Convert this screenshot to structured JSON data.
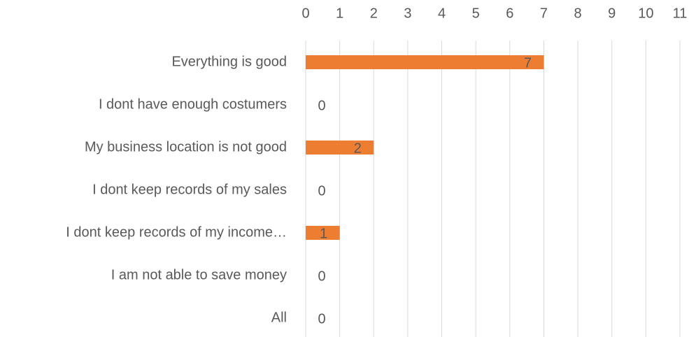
{
  "chart_data": {
    "type": "barh",
    "categories": [
      "Everything is good",
      "I dont have enough costumers",
      "My business location is not good",
      "I dont keep records of my sales",
      "I dont keep records of my income…",
      "I am not able to save money",
      "All"
    ],
    "values": [
      7,
      0,
      2,
      0,
      1,
      0,
      0
    ],
    "color": "#ed7d31",
    "xlim": [
      0,
      11
    ],
    "xticks": [
      0,
      1,
      2,
      3,
      4,
      5,
      6,
      7,
      8,
      9,
      10,
      11
    ],
    "grid": true
  }
}
